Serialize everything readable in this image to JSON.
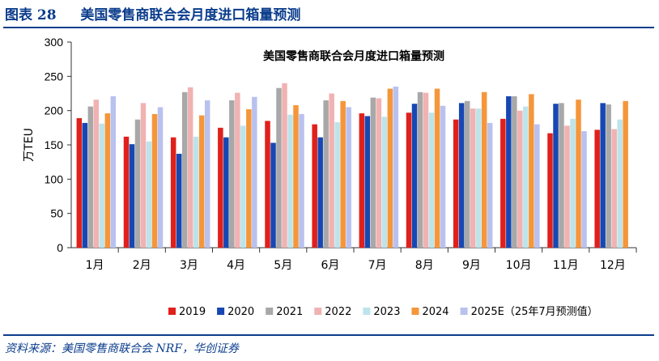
{
  "figure": {
    "label": "图表 28",
    "title": "美国零售商联合会月度进口箱量预测",
    "source": "资料来源：美国零售商联合会 NRF，华创证券"
  },
  "colors": {
    "frame": "#0b3d8c",
    "series": [
      "#e0201b",
      "#1747b3",
      "#a8a8a8",
      "#f1b2b2",
      "#bde4ea",
      "#f5963b",
      "#b9c1ef"
    ]
  },
  "chart_data": {
    "type": "bar",
    "title": "美国零售商联合会月度进口箱量预测",
    "xlabel": "",
    "ylabel": "万TEU",
    "ylim": [
      0,
      300
    ],
    "yticks": [
      0,
      50,
      100,
      150,
      200,
      250,
      300
    ],
    "grid": false,
    "legend": "bottom",
    "categories": [
      "1月",
      "2月",
      "3月",
      "4月",
      "5月",
      "6月",
      "7月",
      "8月",
      "9月",
      "10月",
      "11月",
      "12月"
    ],
    "series": [
      {
        "name": "2019",
        "values": [
          189,
          162,
          161,
          175,
          185,
          180,
          196,
          197,
          187,
          188,
          167,
          172
        ]
      },
      {
        "name": "2020",
        "values": [
          182,
          151,
          137,
          161,
          153,
          161,
          192,
          210,
          211,
          221,
          210,
          211
        ]
      },
      {
        "name": "2021",
        "values": [
          206,
          187,
          227,
          215,
          233,
          215,
          219,
          227,
          214,
          221,
          211,
          209
        ]
      },
      {
        "name": "2022",
        "values": [
          216,
          211,
          234,
          226,
          240,
          225,
          218,
          226,
          203,
          200,
          178,
          173
        ]
      },
      {
        "name": "2023",
        "values": [
          181,
          155,
          162,
          178,
          194,
          183,
          191,
          197,
          203,
          206,
          188,
          187
        ]
      },
      {
        "name": "2024",
        "values": [
          196,
          195,
          193,
          202,
          208,
          214,
          232,
          232,
          227,
          224,
          216,
          214
        ]
      },
      {
        "name": "2025E（25年7月预测值）",
        "values": [
          221,
          205,
          215,
          220,
          195,
          205,
          235,
          207,
          182,
          180,
          170,
          null
        ]
      }
    ]
  }
}
